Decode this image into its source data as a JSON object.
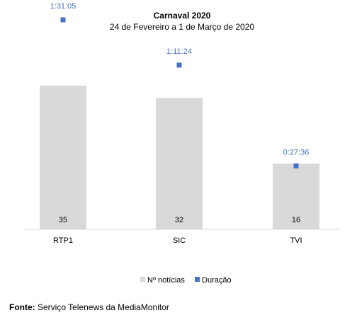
{
  "chart_data": {
    "type": "bar",
    "title": "Carnaval 2020",
    "subtitle": "24 de Fevereiro a 1 de Março de 2020",
    "categories": [
      "RTP1",
      "SIC",
      "TVI"
    ],
    "series": [
      {
        "name": "Nº notícias",
        "kind": "bar",
        "values": [
          35,
          32,
          16
        ],
        "color": "#d9d9d9"
      },
      {
        "name": "Duração",
        "kind": "marker",
        "values": [
          "1:31:05",
          "1:11:24",
          "0:27:36"
        ],
        "color": "#4472c4"
      }
    ],
    "legend_position": "bottom",
    "grid": false
  },
  "source": {
    "label": "Fonte:",
    "text": "Serviço Telenews da MediaMonitor"
  }
}
